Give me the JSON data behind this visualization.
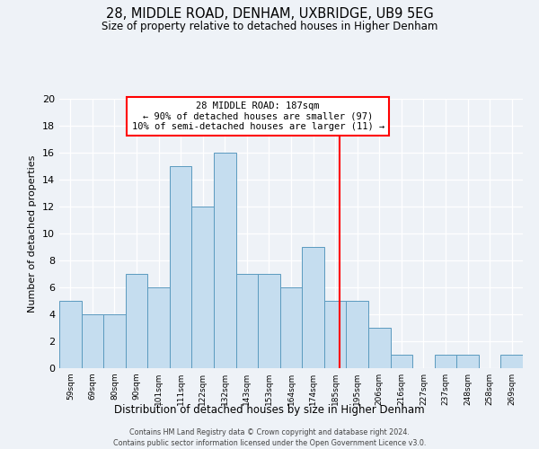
{
  "title": "28, MIDDLE ROAD, DENHAM, UXBRIDGE, UB9 5EG",
  "subtitle": "Size of property relative to detached houses in Higher Denham",
  "xlabel": "Distribution of detached houses by size in Higher Denham",
  "ylabel": "Number of detached properties",
  "bar_values": [
    5,
    4,
    4,
    7,
    6,
    15,
    12,
    16,
    7,
    7,
    6,
    9,
    5,
    5,
    3,
    1,
    0,
    1,
    1,
    0,
    1
  ],
  "bin_labels": [
    "59sqm",
    "69sqm",
    "80sqm",
    "90sqm",
    "101sqm",
    "111sqm",
    "122sqm",
    "132sqm",
    "143sqm",
    "153sqm",
    "164sqm",
    "174sqm",
    "185sqm",
    "195sqm",
    "206sqm",
    "216sqm",
    "227sqm",
    "237sqm",
    "248sqm",
    "258sqm",
    "269sqm"
  ],
  "bar_color": "#c5ddef",
  "bar_edge_color": "#5b9abf",
  "vline_x_index": 12.7,
  "annotation_title": "28 MIDDLE ROAD: 187sqm",
  "annotation_line1": "← 90% of detached houses are smaller (97)",
  "annotation_line2": "10% of semi-detached houses are larger (11) →",
  "annotation_box_color": "white",
  "annotation_box_edge": "red",
  "vline_color": "red",
  "ylim": [
    0,
    20
  ],
  "yticks": [
    0,
    2,
    4,
    6,
    8,
    10,
    12,
    14,
    16,
    18,
    20
  ],
  "footer1": "Contains HM Land Registry data © Crown copyright and database right 2024.",
  "footer2": "Contains public sector information licensed under the Open Government Licence v3.0.",
  "background_color": "#eef2f7",
  "grid_color": "#ffffff"
}
